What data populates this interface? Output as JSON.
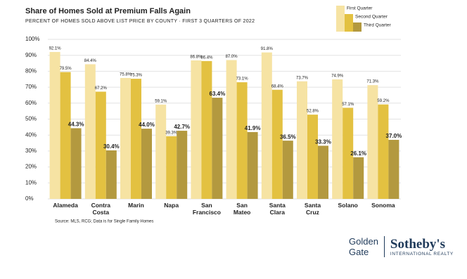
{
  "chart_data": {
    "type": "bar",
    "title": "Share of Homes Sold at Premium Falls Again",
    "subtitle": "PERCENT OF HOMES SOLD ABOVE LIST PRICE BY COUNTY  ·  FIRST 3 QUARTERS OF 2022",
    "source": "Source: MLS, RCG; Data is for Single Family Homes",
    "categories": [
      "Alameda",
      "Contra Costa",
      "Marin",
      "Napa",
      "San Francisco",
      "San Mateo",
      "Santa Clara",
      "Santa Cruz",
      "Solano",
      "Sonoma"
    ],
    "series": [
      {
        "name": "First Quarter",
        "color": "#f6e3a3",
        "values": [
          92.1,
          84.4,
          75.8,
          59.1,
          86.8,
          87.0,
          91.8,
          73.7,
          74.9,
          71.3
        ],
        "value_labels": [
          "92.1%",
          "84.4%",
          "75.8%",
          "59.1%",
          "86.8%",
          "87.0%",
          "91.8%",
          "73.7%",
          "74.9%",
          "71.3%"
        ]
      },
      {
        "name": "Second Quarter",
        "color": "#e3c141",
        "values": [
          79.5,
          67.2,
          75.3,
          39.3,
          86.4,
          73.1,
          68.4,
          52.8,
          57.1,
          59.2
        ],
        "value_labels": [
          "79.5%",
          "67.2%",
          "75.3%",
          "39.3%",
          "86.4%",
          "73.1%",
          "68.4%",
          "52.8%",
          "57.1%",
          "59.2%"
        ]
      },
      {
        "name": "Third Quarter",
        "color": "#b3993f",
        "values": [
          44.3,
          30.4,
          44.0,
          42.7,
          63.4,
          41.9,
          36.5,
          33.3,
          26.1,
          37.0
        ],
        "value_labels": [
          "44.3%",
          "30.4%",
          "44.0%",
          "42.7%",
          "63.4%",
          "41.9%",
          "36.5%",
          "33.3%",
          "26.1%",
          "37.0%"
        ]
      }
    ],
    "ylim": [
      0,
      100
    ],
    "yticks": [
      {
        "value": 0,
        "label": "0%"
      },
      {
        "value": 10,
        "label": "10%"
      },
      {
        "value": 20,
        "label": "20%"
      },
      {
        "value": 30,
        "label": "30%"
      },
      {
        "value": 40,
        "label": "40%"
      },
      {
        "value": 50,
        "label": "50%"
      },
      {
        "value": 60,
        "label": "60%"
      },
      {
        "value": 70,
        "label": "70%"
      },
      {
        "value": 80,
        "label": "80%"
      },
      {
        "value": 90,
        "label": "90%"
      },
      {
        "value": 100,
        "label": "100%"
      }
    ],
    "grid": true,
    "legend": "top-right"
  },
  "logo": {
    "left": [
      "Golden",
      "Gate"
    ],
    "brand": "Sotheby's",
    "tagline": "INTERNATIONAL REALTY"
  }
}
